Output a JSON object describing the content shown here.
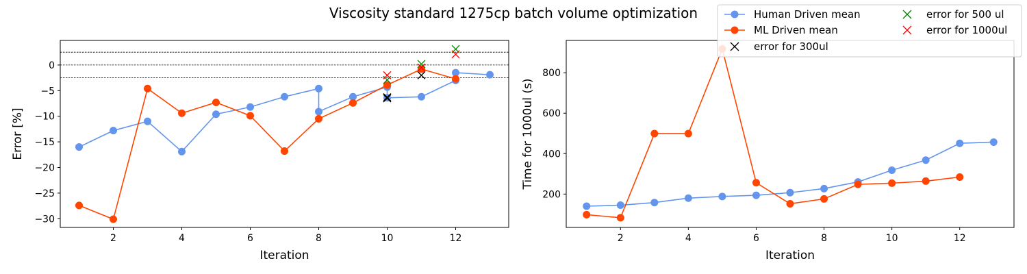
{
  "figure": {
    "title": "Viscosity standard 1275cp batch volume optimization"
  },
  "colors": {
    "human": "#6495ED",
    "ml": "#FF4500",
    "err300": "#000000",
    "err500": "#008000",
    "err1000": "#FF0000"
  },
  "legend": {
    "placement": "upper-right",
    "entries": [
      {
        "key": "human",
        "label": "Human Driven mean",
        "marker": "circle-line"
      },
      {
        "key": "ml",
        "label": "ML Driven mean",
        "marker": "circle-line"
      },
      {
        "key": "err300",
        "label": "error for 300ul",
        "marker": "x"
      },
      {
        "key": "err500",
        "label": "error for 500 ul",
        "marker": "x"
      },
      {
        "key": "err1000",
        "label": "error for 1000ul",
        "marker": "x"
      }
    ]
  },
  "chart_data": [
    {
      "type": "line",
      "xlabel": "Iteration",
      "ylabel": "Error [%]",
      "xlim": [
        0.45,
        13.55
      ],
      "ylim": [
        -31.7,
        4.8
      ],
      "xticks": [
        2,
        4,
        6,
        8,
        10,
        12
      ],
      "yticks": [
        -30,
        -25,
        -20,
        -15,
        -10,
        -5,
        0
      ],
      "reference_lines": [
        2.5,
        0,
        -2.5
      ],
      "series": [
        {
          "key": "human",
          "name": "Human Driven mean",
          "points": [
            [
              1,
              -16.0
            ],
            [
              2,
              -12.8
            ],
            [
              3,
              -11.0
            ],
            [
              4,
              -16.9
            ],
            [
              5,
              -9.6
            ],
            [
              6,
              -8.2
            ],
            [
              7,
              -6.2
            ],
            [
              8,
              -4.6
            ],
            [
              8,
              -9.1
            ],
            [
              9,
              -6.2
            ],
            [
              10,
              -4.3
            ],
            [
              10,
              -6.4
            ],
            [
              11,
              -6.2
            ],
            [
              12,
              -3.0
            ],
            [
              12,
              -1.5
            ],
            [
              13,
              -1.9
            ]
          ]
        },
        {
          "key": "ml",
          "name": "ML Driven mean",
          "points": [
            [
              1,
              -27.4
            ],
            [
              2,
              -30.1
            ],
            [
              3,
              -4.6
            ],
            [
              4,
              -9.4
            ],
            [
              5,
              -7.3
            ],
            [
              6,
              -9.9
            ],
            [
              7,
              -16.8
            ],
            [
              8,
              -10.5
            ],
            [
              9,
              -7.4
            ],
            [
              10,
              -3.9
            ],
            [
              11,
              -0.8
            ],
            [
              12,
              -2.7
            ]
          ]
        }
      ],
      "error_markers": [
        {
          "key": "err300",
          "name": "error for 300ul",
          "points": [
            [
              10,
              -6.3
            ],
            [
              10,
              -6.5
            ],
            [
              11,
              -2.0
            ]
          ]
        },
        {
          "key": "err500",
          "name": "error for 500 ul",
          "points": [
            [
              10,
              -2.9
            ],
            [
              11,
              0.2
            ],
            [
              12,
              3.1
            ]
          ]
        },
        {
          "key": "err1000",
          "name": "error for 1000ul",
          "points": [
            [
              10,
              -2.0
            ],
            [
              11,
              -0.5
            ],
            [
              12,
              2.1
            ]
          ]
        }
      ]
    },
    {
      "type": "line",
      "xlabel": "Iteration",
      "ylabel": "Time for 1000ul (s)",
      "xlim": [
        0.4,
        13.6
      ],
      "ylim": [
        35,
        960
      ],
      "xticks": [
        2,
        4,
        6,
        8,
        10,
        12
      ],
      "yticks": [
        200,
        400,
        600,
        800
      ],
      "series": [
        {
          "key": "human",
          "name": "Human Driven mean",
          "points": [
            [
              1,
              140
            ],
            [
              2,
              145
            ],
            [
              3,
              158
            ],
            [
              4,
              180
            ],
            [
              5,
              188
            ],
            [
              6,
              194
            ],
            [
              7,
              207
            ],
            [
              8,
              227
            ],
            [
              9,
              260
            ],
            [
              10,
              318
            ],
            [
              11,
              368
            ],
            [
              12,
              451
            ],
            [
              13,
              457
            ]
          ]
        },
        {
          "key": "ml",
          "name": "ML Driven mean",
          "points": [
            [
              1,
              98
            ],
            [
              2,
              83
            ],
            [
              3,
              499
            ],
            [
              4,
              499
            ],
            [
              5,
              918
            ],
            [
              6,
              256
            ],
            [
              7,
              152
            ],
            [
              8,
              176
            ],
            [
              9,
              248
            ],
            [
              10,
              254
            ],
            [
              11,
              264
            ],
            [
              12,
              284
            ]
          ]
        }
      ]
    }
  ]
}
